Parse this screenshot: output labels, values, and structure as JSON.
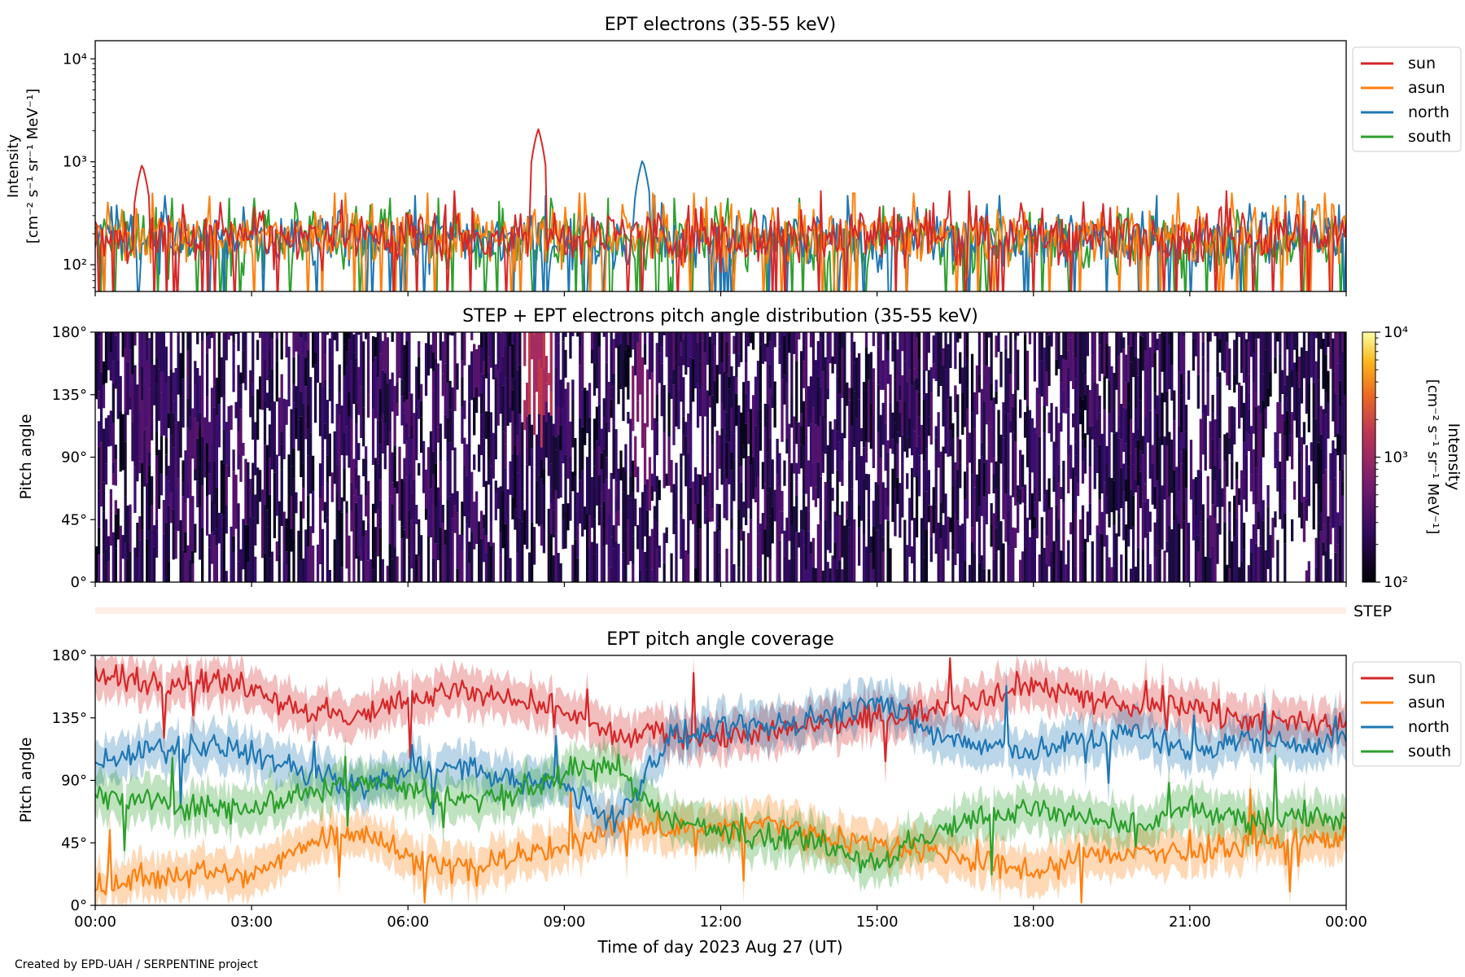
{
  "footer": {
    "credit": "Created by EPD-UAH / SERPENTINE project"
  },
  "colors": {
    "sun": "#d62728",
    "asun": "#ff7f0e",
    "north": "#1f77b4",
    "south": "#2ca02c"
  },
  "chart_data": [
    {
      "id": "intensity",
      "type": "line",
      "title": "EPT electrons (35-55 keV)",
      "ylabel_line1": "Intensity",
      "ylabel_line2": "[cm⁻² s⁻¹ sr⁻¹ MeV⁻¹]",
      "yscale": "log",
      "ylim": [
        55,
        15000
      ],
      "yticks": [
        {
          "value": 100,
          "label": "10²"
        },
        {
          "value": 1000,
          "label": "10³"
        },
        {
          "value": 10000,
          "label": "10⁴"
        }
      ],
      "xlim_hours": [
        0,
        24
      ],
      "legend": [
        "sun",
        "asun",
        "north",
        "south"
      ],
      "legend_placement": "outside-right",
      "series": [
        {
          "name": "sun",
          "baseline": 200,
          "peaks": [
            {
              "x": 8.5,
              "y": 2100
            },
            {
              "x": 0.9,
              "y": 950
            }
          ]
        },
        {
          "name": "asun",
          "baseline": 190,
          "peaks": []
        },
        {
          "name": "north",
          "baseline": 180,
          "peaks": [
            {
              "x": 10.5,
              "y": 1050
            }
          ]
        },
        {
          "name": "south",
          "baseline": 170,
          "peaks": []
        }
      ]
    },
    {
      "id": "pad",
      "type": "heatmap",
      "title": "STEP + EPT electrons pitch angle distribution (35-55 keV)",
      "ylabel": "Pitch angle",
      "ylim": [
        0,
        180
      ],
      "yticks": [
        {
          "value": 0,
          "label": "0°"
        },
        {
          "value": 45,
          "label": "45°"
        },
        {
          "value": 90,
          "label": "90°"
        },
        {
          "value": 135,
          "label": "135°"
        },
        {
          "value": 180,
          "label": "180°"
        }
      ],
      "xlim_hours": [
        0,
        24
      ],
      "colorbar": {
        "label_line1": "Intensity",
        "label_line2": "[cm⁻² s⁻¹ sr⁻¹ MeV⁻¹]",
        "scale": "log",
        "range": [
          100,
          10000
        ],
        "ticks": [
          {
            "value": 100,
            "label": "10²"
          },
          {
            "value": 1000,
            "label": "10³"
          },
          {
            "value": 10000,
            "label": "10⁴"
          }
        ],
        "colormap": "inferno"
      }
    },
    {
      "id": "step",
      "type": "heatmap",
      "label": "STEP"
    },
    {
      "id": "coverage",
      "type": "line",
      "title": "EPT pitch angle coverage",
      "ylabel": "Pitch angle",
      "ylim": [
        0,
        180
      ],
      "yticks": [
        {
          "value": 0,
          "label": "0°"
        },
        {
          "value": 45,
          "label": "45°"
        },
        {
          "value": 90,
          "label": "90°"
        },
        {
          "value": 135,
          "label": "135°"
        },
        {
          "value": 180,
          "label": "180°"
        }
      ],
      "xlim_hours": [
        0,
        24
      ],
      "xticks": [
        {
          "value": 0,
          "label": "00:00"
        },
        {
          "value": 3,
          "label": "03:00"
        },
        {
          "value": 6,
          "label": "06:00"
        },
        {
          "value": 9,
          "label": "09:00"
        },
        {
          "value": 12,
          "label": "12:00"
        },
        {
          "value": 15,
          "label": "15:00"
        },
        {
          "value": 18,
          "label": "18:00"
        },
        {
          "value": 21,
          "label": "21:00"
        },
        {
          "value": 24,
          "label": "00:00"
        }
      ],
      "xlabel": "Time of day 2023 Aug 27 (UT)",
      "legend": [
        "sun",
        "asun",
        "north",
        "south"
      ],
      "legend_placement": "outside-right",
      "series": [
        {
          "name": "sun",
          "x": [
            0,
            1,
            2,
            3,
            4,
            5,
            6,
            7,
            8,
            9,
            10,
            11,
            12,
            13,
            14,
            15,
            16,
            17,
            18,
            19,
            20,
            21,
            22,
            23,
            24
          ],
          "y": [
            165,
            160,
            162,
            158,
            140,
            135,
            150,
            155,
            145,
            140,
            120,
            125,
            120,
            125,
            130,
            135,
            140,
            150,
            160,
            150,
            140,
            145,
            135,
            130,
            130
          ]
        },
        {
          "name": "asun",
          "x": [
            0,
            1,
            2,
            3,
            4,
            5,
            6,
            7,
            8,
            9,
            10,
            11,
            12,
            13,
            14,
            15,
            16,
            17,
            18,
            19,
            20,
            21,
            22,
            23,
            24
          ],
          "y": [
            15,
            20,
            25,
            20,
            45,
            55,
            35,
            25,
            35,
            40,
            60,
            55,
            55,
            60,
            50,
            45,
            40,
            30,
            25,
            35,
            40,
            35,
            45,
            45,
            50
          ]
        },
        {
          "name": "north",
          "x": [
            0,
            1,
            2,
            3,
            4,
            5,
            6,
            7,
            8,
            9,
            10,
            11,
            12,
            13,
            14,
            15,
            16,
            17,
            18,
            19,
            20,
            21,
            22,
            23,
            24
          ],
          "y": [
            105,
            110,
            115,
            110,
            95,
            85,
            95,
            100,
            90,
            85,
            60,
            120,
            125,
            130,
            135,
            150,
            125,
            115,
            110,
            120,
            125,
            110,
            120,
            115,
            120
          ]
        },
        {
          "name": "south",
          "x": [
            0,
            1,
            2,
            3,
            4,
            5,
            6,
            7,
            8,
            9,
            10,
            11,
            12,
            13,
            14,
            15,
            16,
            17,
            18,
            19,
            20,
            21,
            22,
            23,
            24
          ],
          "y": [
            80,
            75,
            70,
            72,
            80,
            90,
            85,
            75,
            80,
            95,
            100,
            60,
            55,
            50,
            45,
            30,
            50,
            65,
            70,
            60,
            55,
            70,
            60,
            65,
            60
          ]
        }
      ]
    }
  ]
}
